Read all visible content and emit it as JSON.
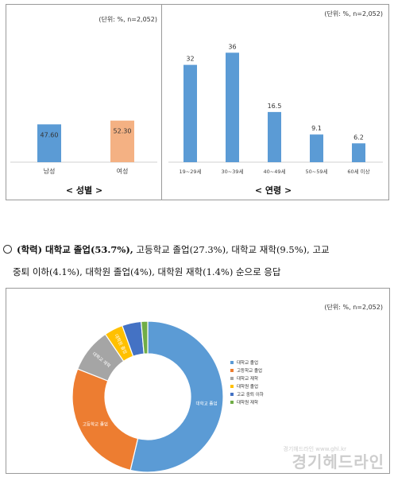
{
  "chart_data": [
    {
      "type": "bar",
      "unit_note": "(단위: %, n=2,052)",
      "categories": [
        "남성",
        "여성"
      ],
      "values": [
        47.6,
        52.3
      ],
      "value_labels": [
        "47.60",
        "52.30"
      ],
      "colors": [
        "#5b9bd5",
        "#f4b183"
      ],
      "title": "< 성별 >",
      "ylim": [
        0,
        100
      ]
    },
    {
      "type": "bar",
      "unit_note": "(단위: %, n=2,052)",
      "categories": [
        "19~29세",
        "30~39세",
        "40~49세",
        "50~59세",
        "60세 이상"
      ],
      "values": [
        32,
        36,
        16.5,
        9.1,
        6.2
      ],
      "value_labels": [
        "32",
        "36",
        "16.5",
        "9.1",
        "6.2"
      ],
      "colors": [
        "#5b9bd5",
        "#5b9bd5",
        "#5b9bd5",
        "#5b9bd5",
        "#5b9bd5"
      ],
      "title": "< 연령 >",
      "ylim": [
        0,
        40
      ]
    },
    {
      "type": "pie",
      "unit_note": "(단위: %, n=2,052)",
      "categories": [
        "대학교 졸업",
        "고등학교 졸업",
        "대학교 재학",
        "대학원 졸업",
        "고교 중퇴 이하",
        "대학원 재학"
      ],
      "values": [
        53.7,
        27.3,
        9.5,
        4.0,
        4.1,
        1.4
      ],
      "slice_labels": [
        "대학교 졸업",
        "고등학교 졸업",
        "대학교 재학",
        "대학원 졸업",
        "",
        ""
      ],
      "colors": [
        "#5b9bd5",
        "#ed7d31",
        "#a5a5a5",
        "#ffc000",
        "#4472c4",
        "#70ad47"
      ],
      "donut": true
    }
  ],
  "summary": {
    "prefix": "(학력) 대학교 졸업(53.7%),",
    "line1_rest": " 고등학교 졸업(27.3%), 대학교 재학(9.5%), 고교",
    "line2": "중퇴 이하(4.1%), 대학원 졸업(4%), 대학원 재학(1.4%) 순으로 응답"
  },
  "watermark": {
    "brand": "경기헤드라인",
    "sub": "경기헤드라인 www.ghl.kr"
  }
}
